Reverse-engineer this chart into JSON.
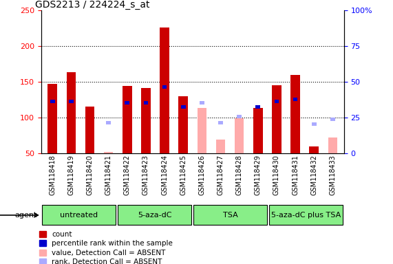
{
  "title": "GDS2213 / 224224_s_at",
  "samples": [
    "GSM118418",
    "GSM118419",
    "GSM118420",
    "GSM118421",
    "GSM118422",
    "GSM118423",
    "GSM118424",
    "GSM118425",
    "GSM118426",
    "GSM118427",
    "GSM118428",
    "GSM118429",
    "GSM118430",
    "GSM118431",
    "GSM118432",
    "GSM118433"
  ],
  "group_boundaries": [
    {
      "start": 0,
      "end": 4,
      "label": "untreated"
    },
    {
      "start": 4,
      "end": 8,
      "label": "5-aza-dC"
    },
    {
      "start": 8,
      "end": 12,
      "label": "TSA"
    },
    {
      "start": 12,
      "end": 16,
      "label": "5-aza-dC plus TSA"
    }
  ],
  "count_present": [
    147,
    164,
    115,
    null,
    144,
    141,
    226,
    130,
    null,
    null,
    null,
    113,
    145,
    160,
    59,
    null
  ],
  "count_absent": [
    null,
    null,
    null,
    52,
    null,
    null,
    null,
    null,
    113,
    69,
    99,
    null,
    null,
    null,
    null,
    72
  ],
  "rank_present": [
    120,
    120,
    null,
    null,
    118,
    118,
    140,
    112,
    null,
    null,
    null,
    112,
    120,
    123,
    null,
    null
  ],
  "rank_absent": [
    null,
    null,
    null,
    90,
    null,
    null,
    null,
    null,
    118,
    90,
    99,
    null,
    null,
    null,
    88,
    95
  ],
  "ylim_left": [
    50,
    250
  ],
  "ylim_right": [
    0,
    100
  ],
  "left_ticks": [
    50,
    100,
    150,
    200,
    250
  ],
  "right_ticks": [
    0,
    25,
    50,
    75,
    100
  ],
  "bar_color_present": "#cc0000",
  "bar_color_absent": "#ffaaaa",
  "rank_color_present": "#0000cc",
  "rank_color_absent": "#aaaaff",
  "legend_items": [
    {
      "label": "count",
      "color": "#cc0000"
    },
    {
      "label": "percentile rank within the sample",
      "color": "#0000cc"
    },
    {
      "label": "value, Detection Call = ABSENT",
      "color": "#ffaaaa"
    },
    {
      "label": "rank, Detection Call = ABSENT",
      "color": "#aaaaff"
    }
  ],
  "bar_width": 0.5,
  "rank_bar_width": 0.25,
  "rank_bar_height": 5,
  "agent_label": "agent",
  "group_color": "#88ee88",
  "gray_bg": "#c8c8c8",
  "grid_lines": [
    100,
    150,
    200
  ]
}
